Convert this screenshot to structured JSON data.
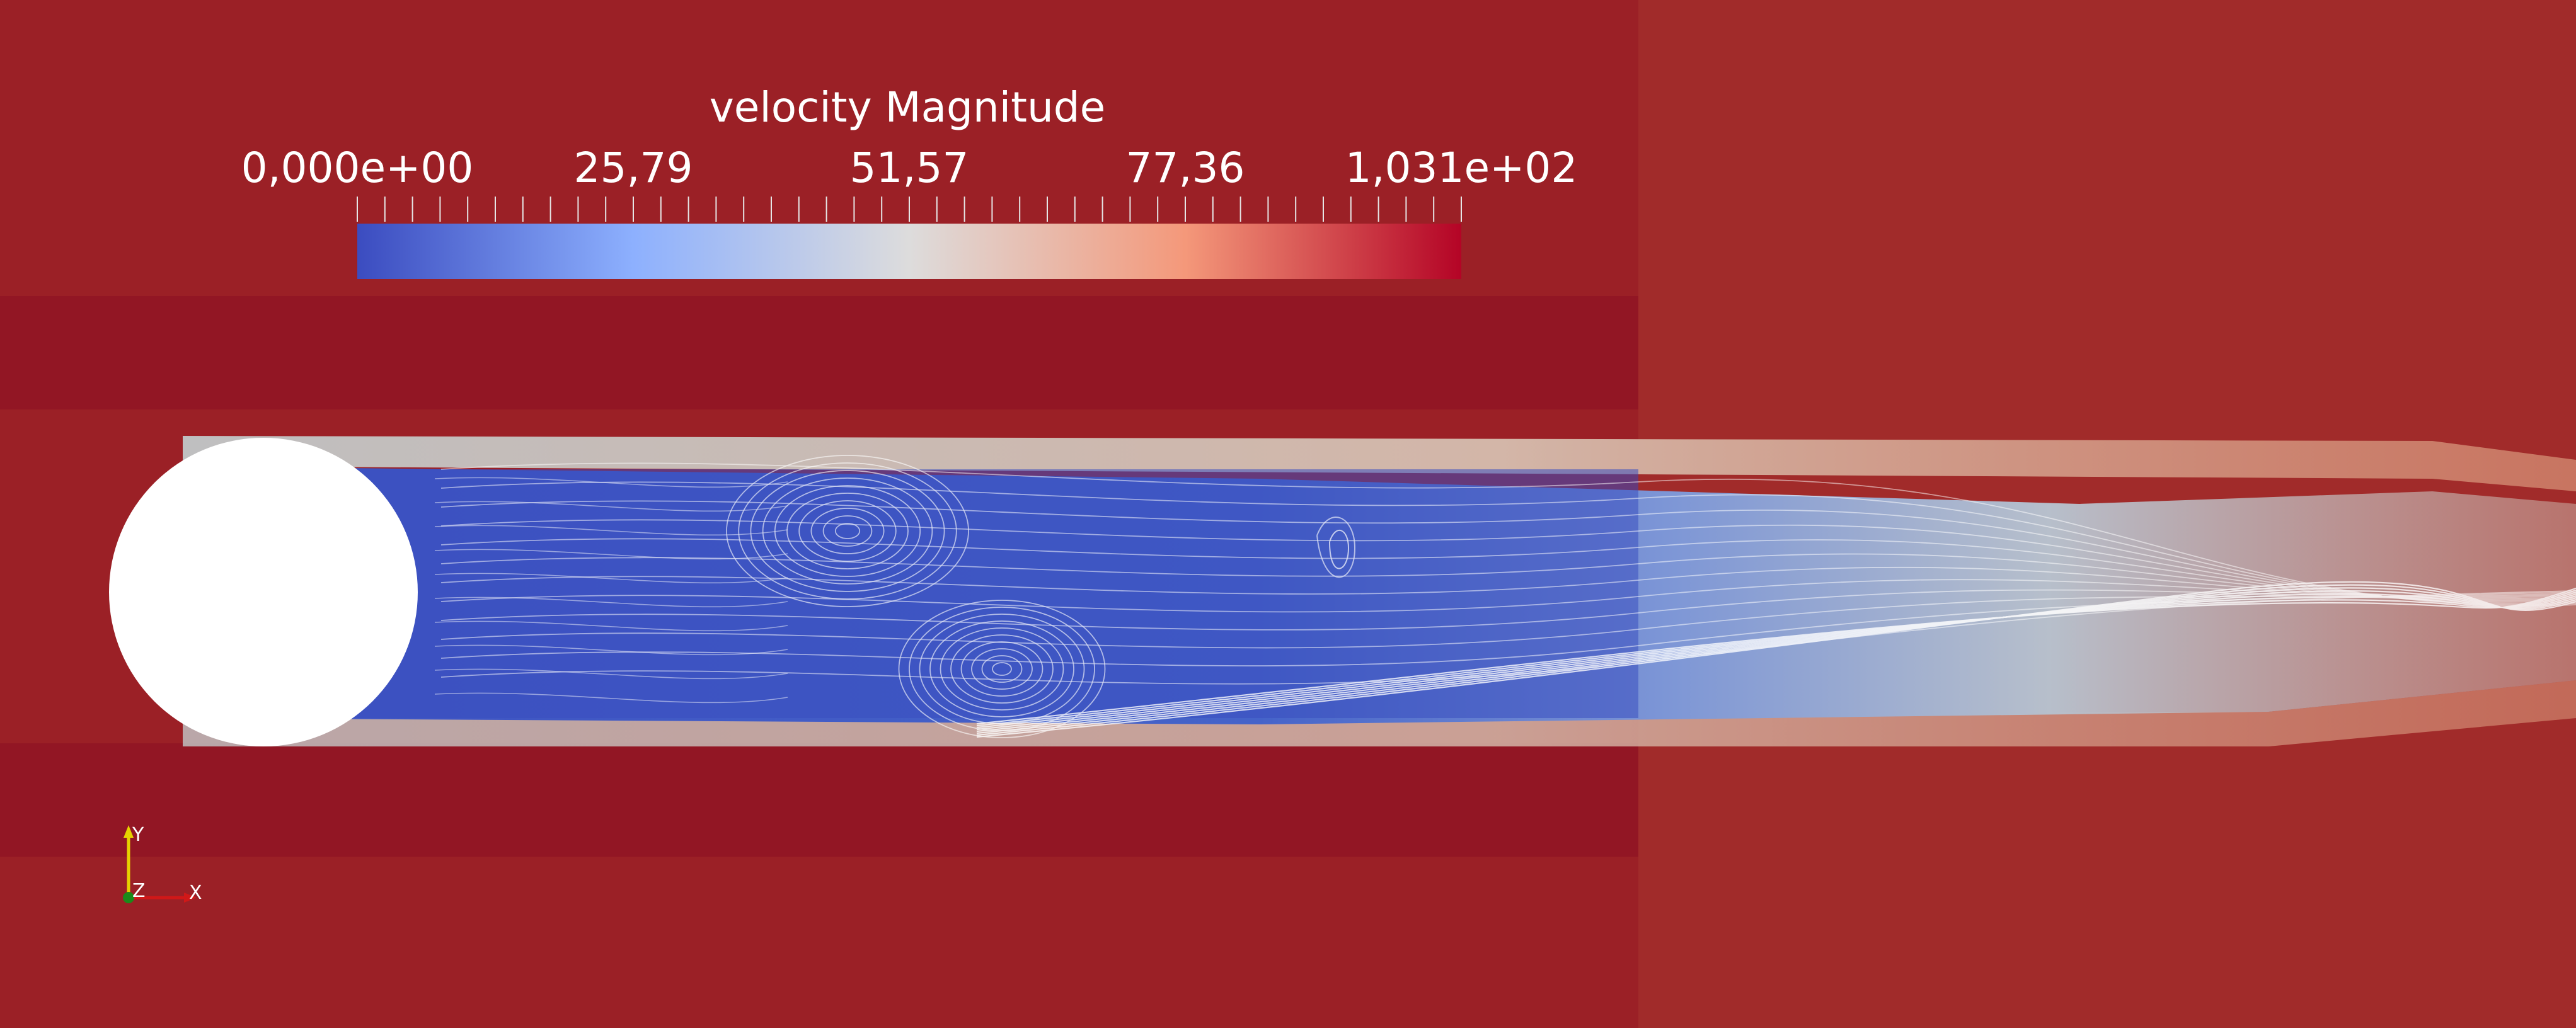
{
  "legend": {
    "title": "velocity Magnitude",
    "range": [
      0,
      103.1
    ],
    "tick_labels": [
      "0,000e+00",
      "25,79",
      "51,57",
      "77,36",
      "1,031e+02"
    ],
    "colormap": [
      "#3b4cc0",
      "#8db0fe",
      "#dddcdc",
      "#f4987a",
      "#b40426"
    ]
  },
  "orientation_axes": {
    "y_label": "Y",
    "z_label": "Z",
    "x_label": "X"
  },
  "colors": {
    "background": "#8f1b22",
    "obstacle": "#ffffff",
    "streamline": "#ffffff",
    "axis_y": "#e6d200",
    "axis_x": "#d01818",
    "axis_z": "#1a8a1a"
  }
}
